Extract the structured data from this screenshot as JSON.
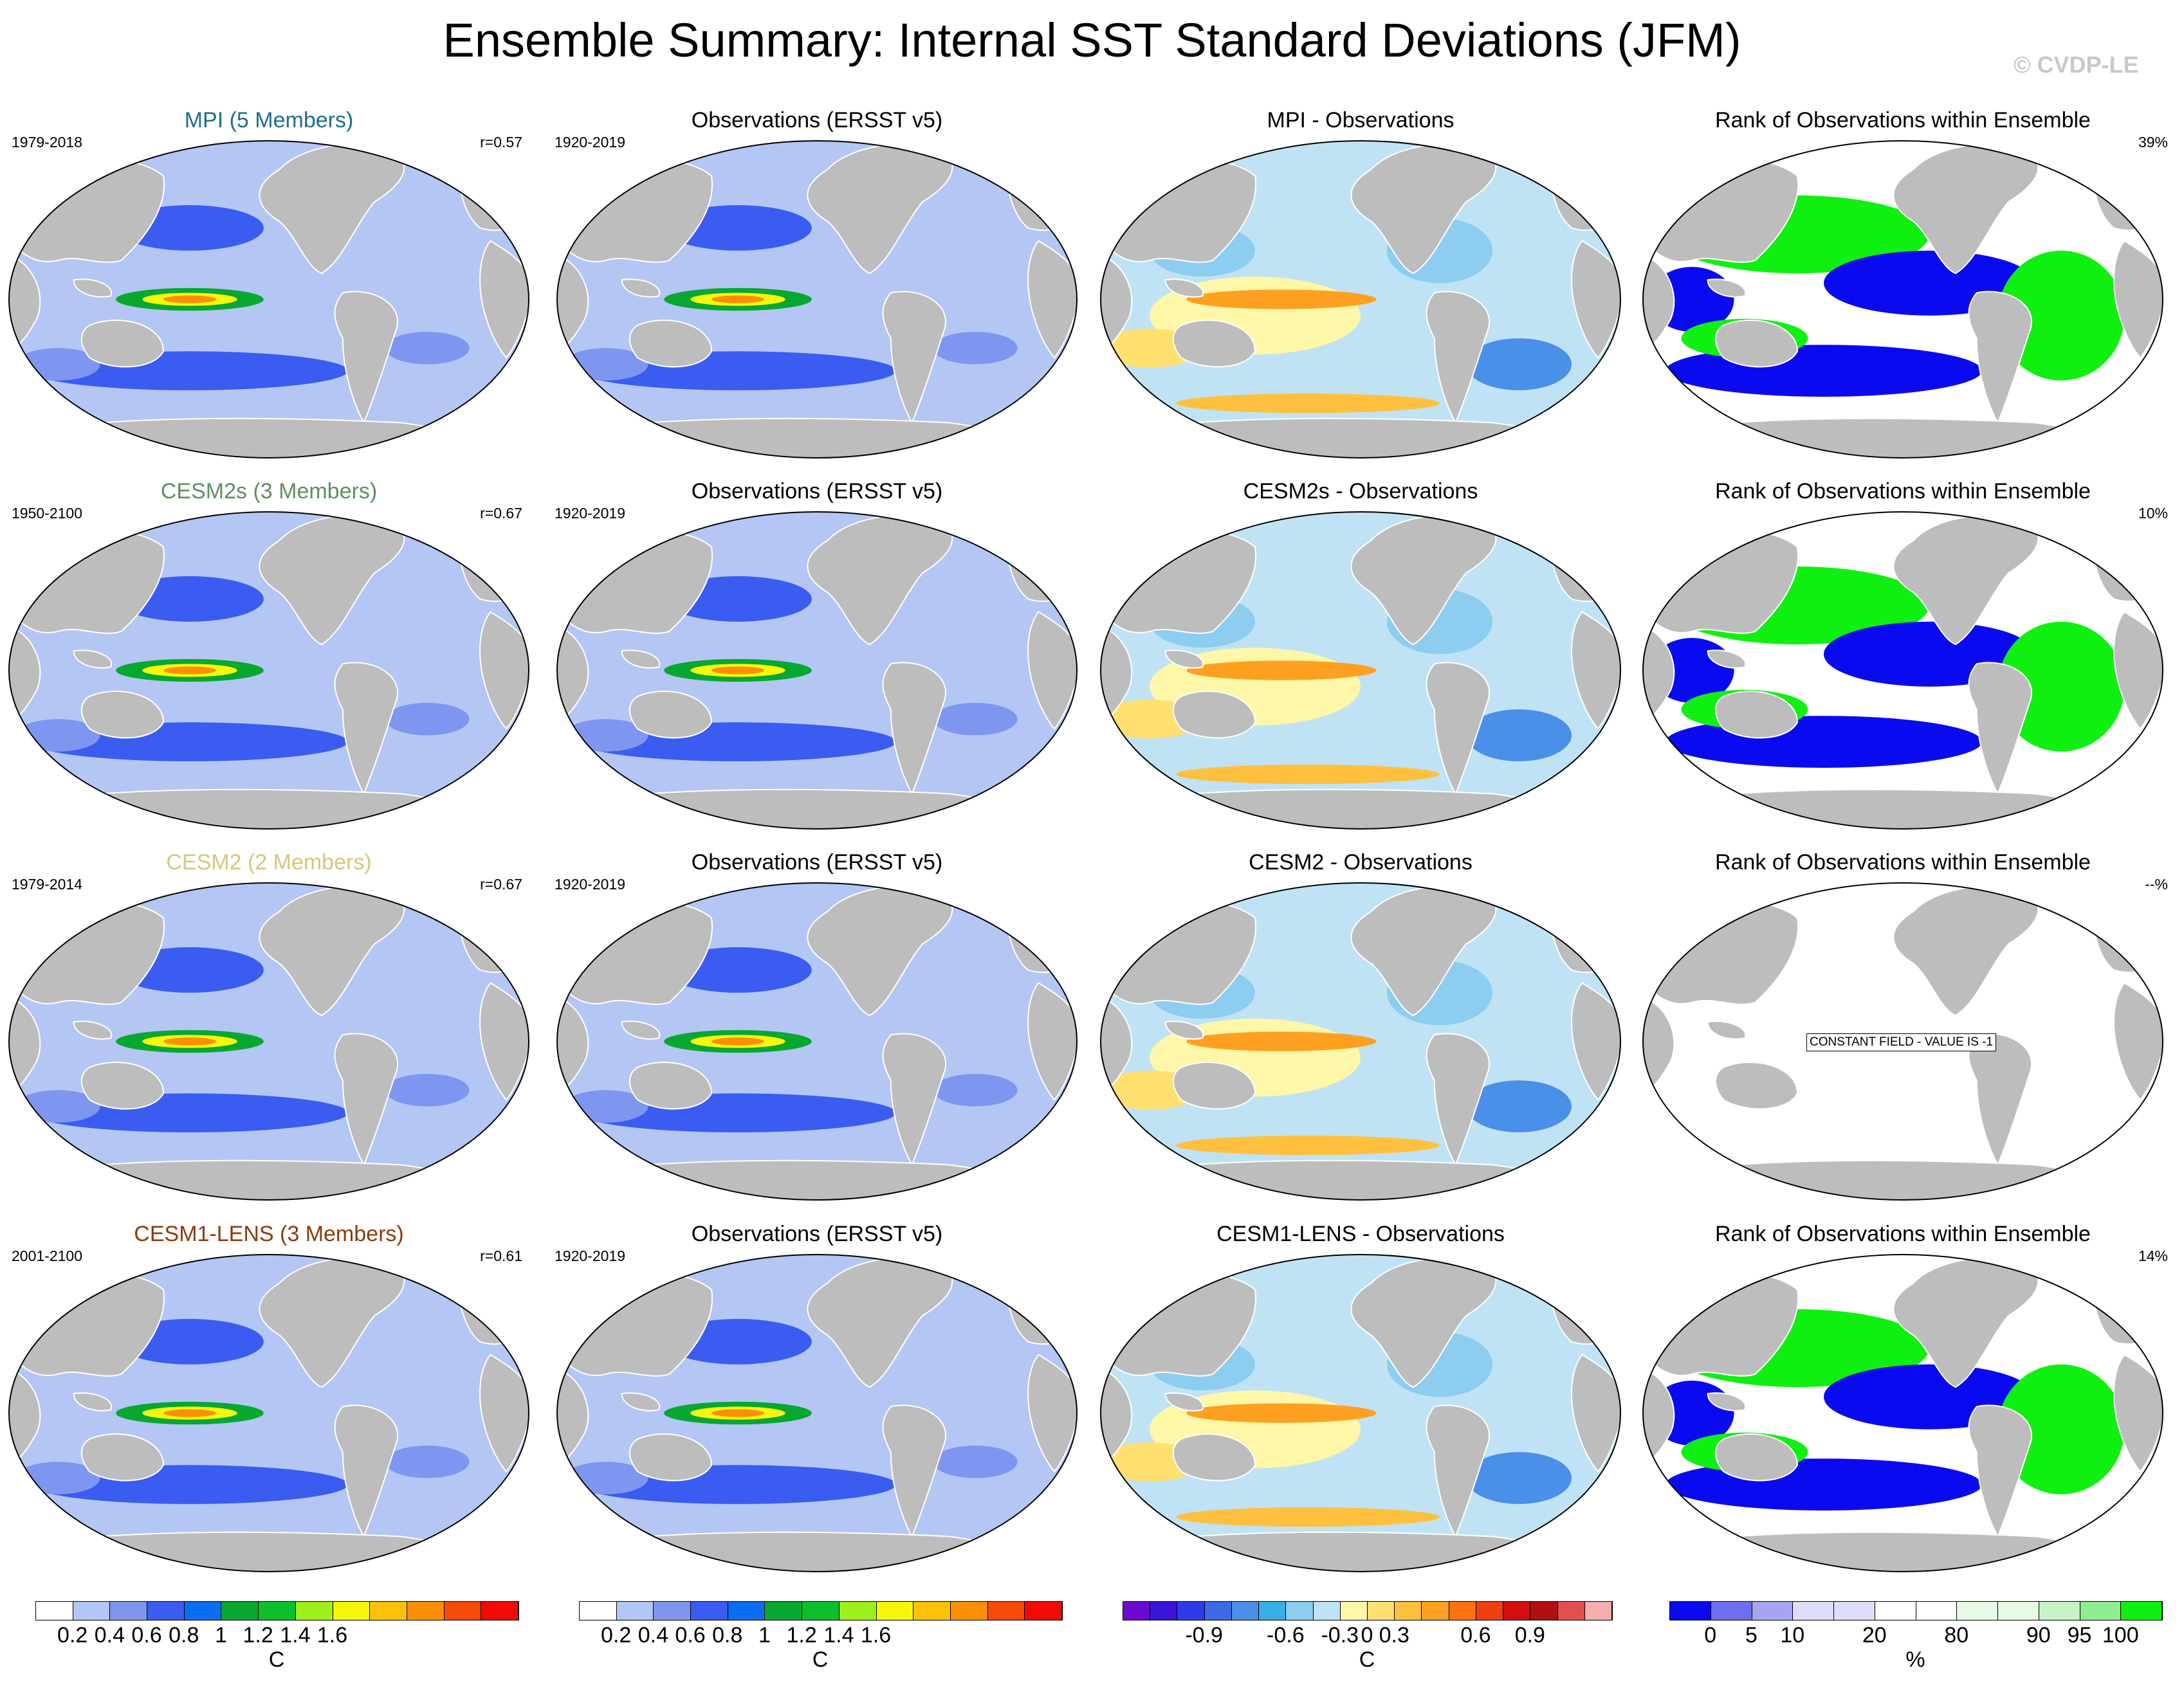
{
  "figure_title": "Ensemble Summary: Internal SST Standard Deviations (JFM)",
  "watermark": "© CVDP-LE",
  "rows": [
    {
      "model_title": "MPI (5 Members)",
      "model_color": "#1f6e8c",
      "model_period": "1979-2018",
      "pattern_corr": "r=0.57",
      "obs_title": "Observations (ERSST v5)",
      "obs_period": "1920-2019",
      "diff_title": "MPI - Observations",
      "rank_title": "Rank of Observations within Ensemble",
      "rank_pct": "39%"
    },
    {
      "model_title": "CESM2s (3 Members)",
      "model_color": "#5f8f5f",
      "model_period": "1950-2100",
      "pattern_corr": "r=0.67",
      "obs_title": "Observations (ERSST v5)",
      "obs_period": "1920-2019",
      "diff_title": "CESM2s - Observations",
      "rank_title": "Rank of Observations within Ensemble",
      "rank_pct": "10%"
    },
    {
      "model_title": "CESM2 (2 Members)",
      "model_color": "#d8c67a",
      "model_period": "1979-2014",
      "pattern_corr": "r=0.67",
      "obs_title": "Observations (ERSST v5)",
      "obs_period": "1920-2019",
      "diff_title": "CESM2 - Observations",
      "rank_title": "Rank of Observations within Ensemble",
      "rank_pct": "--%",
      "rank_note": "CONSTANT FIELD - VALUE IS -1"
    },
    {
      "model_title": "CESM1-LENS (3 Members)",
      "model_color": "#8b3a0f",
      "model_period": "2001-2100",
      "pattern_corr": "r=0.61",
      "obs_title": "Observations (ERSST v5)",
      "obs_period": "1920-2019",
      "diff_title": "CESM1-LENS - Observations",
      "rank_title": "Rank of Observations within Ensemble",
      "rank_pct": "14%"
    }
  ],
  "colorbars": {
    "stddev": {
      "colors": [
        "#ffffff",
        "#b4c6f4",
        "#7f96f0",
        "#3a5cf0",
        "#0a6ef2",
        "#06a830",
        "#0dc02b",
        "#9ef01c",
        "#f7f70c",
        "#fdc10a",
        "#fd8f06",
        "#f84a04",
        "#f20a02"
      ],
      "labels": [
        "0.2",
        "0.4",
        "0.6",
        "0.8",
        "1",
        "1.2",
        "1.4",
        "1.6"
      ],
      "unit": "C"
    },
    "diff": {
      "colors": [
        "#6a0ad0",
        "#3a14d8",
        "#2e3ce8",
        "#3c6ae6",
        "#4a8fe8",
        "#38aee8",
        "#8ccdf0",
        "#bfe3f4",
        "#fff7a8",
        "#ffe070",
        "#ffc040",
        "#ffa020",
        "#ff7010",
        "#f04010",
        "#d01010",
        "#b01010",
        "#e05050",
        "#f4aeae"
      ],
      "labels": [
        "-0.9",
        "-0.6",
        "-0.3",
        "0",
        "0.3",
        "0.6",
        "0.9"
      ],
      "unit": "C"
    },
    "rank": {
      "colors": [
        "#0a0af0",
        "#6e6ef0",
        "#a6a6f0",
        "#dedef8",
        "#dedef8",
        "#ffffff",
        "#ffffff",
        "#e6fbe6",
        "#e6fbe6",
        "#c6f4c6",
        "#8fed8f",
        "#10f010"
      ],
      "labels": [
        "0",
        "5",
        "10",
        "20",
        "80",
        "90",
        "95",
        "100"
      ],
      "unit": "%"
    }
  },
  "map_colors": {
    "land": "#bdbdbd",
    "ocean_base_std": "#b4c6f4",
    "ocean_base_diff": "#bfe3f4",
    "ocean_base_rank": "#ffffff",
    "coast": "#ffffff"
  }
}
